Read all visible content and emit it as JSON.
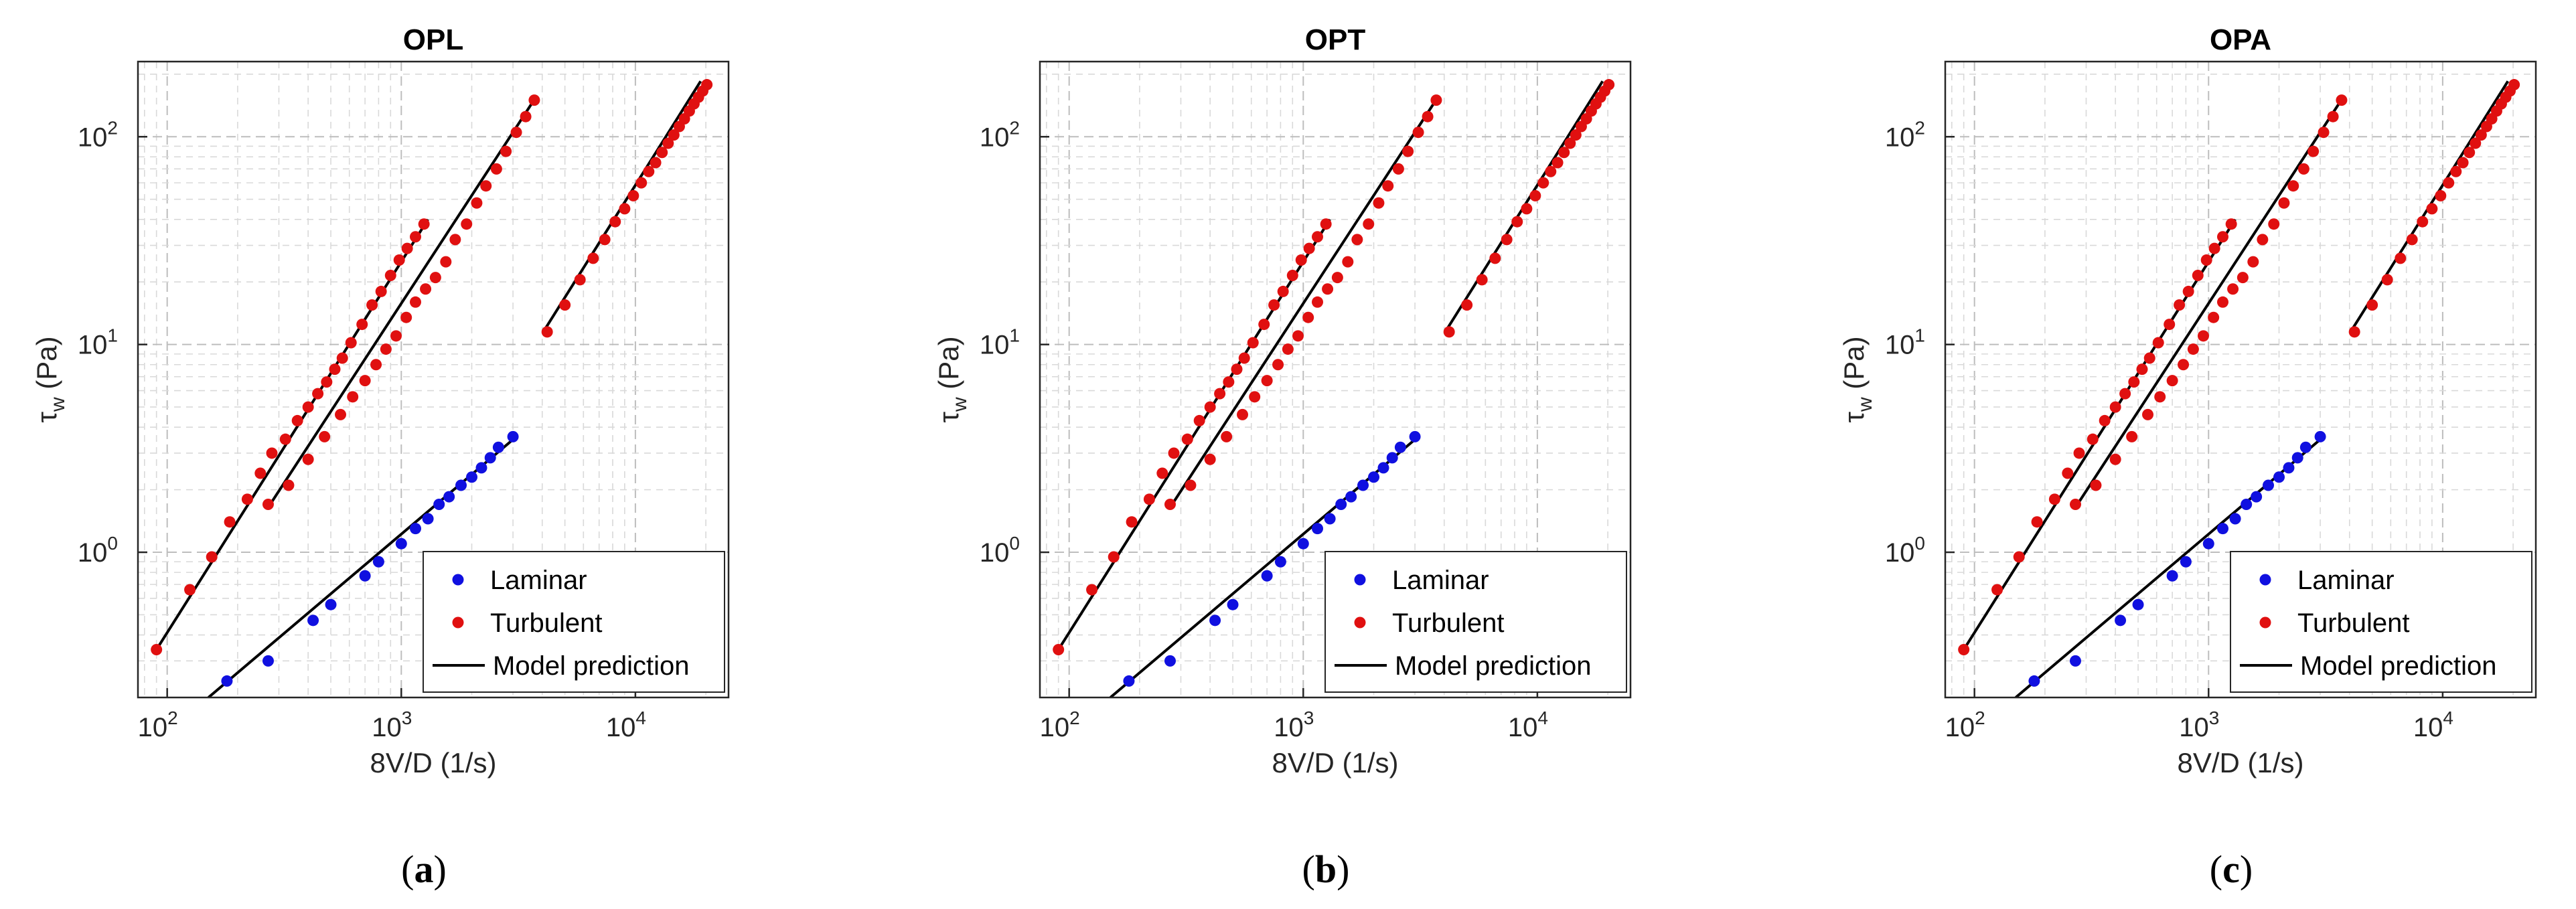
{
  "figure": {
    "panels": [
      {
        "title": "OPL",
        "caption_letter": "a"
      },
      {
        "title": "OPT",
        "caption_letter": "b"
      },
      {
        "title": "OPA",
        "caption_letter": "c"
      }
    ]
  },
  "chart_data": [
    {
      "type": "scatter",
      "title": "OPL",
      "xlabel": "8V/D (1/s)",
      "ylabel": "τ_w (Pa)",
      "xscale": "log",
      "yscale": "log",
      "xlim": [
        75,
        25000
      ],
      "ylim": [
        0.2,
        230
      ],
      "xticks": [
        "10^2",
        "10^3",
        "10^4"
      ],
      "yticks": [
        "10^0",
        "10^1",
        "10^2"
      ],
      "grid": true,
      "minor_grid": true,
      "legend": {
        "position": "bottom-right",
        "entries": [
          "Laminar",
          "Turbulent",
          "Model prediction"
        ]
      },
      "series": [
        {
          "name": "Laminar",
          "marker": "dot",
          "color": "#1010e0",
          "x": [
            180,
            270,
            420,
            500,
            700,
            800,
            1000,
            1150,
            1300,
            1450,
            1600,
            1800,
            2000,
            2200,
            2400,
            2600,
            3000
          ],
          "y": [
            0.24,
            0.3,
            0.47,
            0.56,
            0.77,
            0.9,
            1.1,
            1.3,
            1.45,
            1.7,
            1.85,
            2.1,
            2.3,
            2.55,
            2.85,
            3.2,
            3.6
          ]
        },
        {
          "name": "Turbulent (set 1)",
          "marker": "dot",
          "color": "#e01010",
          "x": [
            90,
            125,
            155,
            185,
            220,
            250,
            280,
            320,
            360,
            400,
            440,
            480,
            520,
            560,
            610,
            680,
            750,
            820,
            900,
            980,
            1060,
            1150,
            1250
          ],
          "y": [
            0.34,
            0.66,
            0.95,
            1.4,
            1.8,
            2.4,
            3.0,
            3.5,
            4.3,
            5.0,
            5.8,
            6.6,
            7.6,
            8.6,
            10.2,
            12.5,
            15.5,
            18.0,
            21.5,
            25.5,
            29.0,
            33.0,
            38.0
          ]
        },
        {
          "name": "Turbulent (set 2)",
          "marker": "dot",
          "color": "#e01010",
          "x": [
            270,
            330,
            400,
            470,
            550,
            620,
            700,
            780,
            860,
            950,
            1050,
            1150,
            1270,
            1400,
            1550,
            1700,
            1900,
            2100,
            2300,
            2550,
            2800,
            3100,
            3400,
            3700
          ],
          "y": [
            1.7,
            2.1,
            2.8,
            3.6,
            4.6,
            5.6,
            6.7,
            8.0,
            9.5,
            11.0,
            13.5,
            16.0,
            18.5,
            21.0,
            25.0,
            32.0,
            38.0,
            48.0,
            58.0,
            70.0,
            85.0,
            105.0,
            125.0,
            150.0
          ]
        },
        {
          "name": "Turbulent (set 3)",
          "marker": "dot",
          "color": "#e01010",
          "x": [
            4200,
            5000,
            5800,
            6600,
            7400,
            8200,
            9000,
            9800,
            10600,
            11400,
            12200,
            13000,
            13800,
            14600,
            15400,
            16200,
            17000,
            17800,
            18600,
            19400,
            20200
          ],
          "y": [
            11.5,
            15.5,
            20.5,
            26.0,
            32.0,
            39.0,
            45.0,
            52.0,
            60.0,
            68.0,
            75.0,
            84.0,
            93.0,
            102.0,
            112.0,
            122.0,
            133.0,
            144.0,
            155.0,
            166.0,
            178.0
          ]
        },
        {
          "name": "Model prediction (laminar)",
          "line": true,
          "color": "#000000",
          "x": [
            150,
            3100
          ],
          "y": [
            0.2,
            3.6
          ]
        },
        {
          "name": "Model prediction (turbulent 1)",
          "line": true,
          "color": "#000000",
          "x": [
            90,
            1300
          ],
          "y": [
            0.34,
            40
          ]
        },
        {
          "name": "Model prediction (turbulent 2)",
          "line": true,
          "color": "#000000",
          "x": [
            280,
            3800
          ],
          "y": [
            1.75,
            158
          ]
        },
        {
          "name": "Model prediction (turbulent 3)",
          "line": true,
          "color": "#000000",
          "x": [
            4100,
            19000
          ],
          "y": [
            11.8,
            185
          ]
        }
      ]
    },
    {
      "type": "scatter",
      "title": "OPT",
      "xlabel": "8V/D (1/s)",
      "ylabel": "τ_w (Pa)",
      "xscale": "log",
      "yscale": "log",
      "xlim": [
        75,
        25000
      ],
      "ylim": [
        0.2,
        230
      ],
      "xticks": [
        "10^2",
        "10^3",
        "10^4"
      ],
      "yticks": [
        "10^0",
        "10^1",
        "10^2"
      ],
      "grid": true,
      "minor_grid": true,
      "legend": {
        "position": "bottom-right",
        "entries": [
          "Laminar",
          "Turbulent",
          "Model prediction"
        ]
      },
      "series": [
        {
          "name": "Laminar",
          "marker": "dot",
          "color": "#1010e0",
          "x": [
            180,
            270,
            420,
            500,
            700,
            800,
            1000,
            1150,
            1300,
            1450,
            1600,
            1800,
            2000,
            2200,
            2400,
            2600,
            3000
          ],
          "y": [
            0.24,
            0.3,
            0.47,
            0.56,
            0.77,
            0.9,
            1.1,
            1.3,
            1.45,
            1.7,
            1.85,
            2.1,
            2.3,
            2.55,
            2.85,
            3.2,
            3.6
          ]
        },
        {
          "name": "Turbulent (set 1)",
          "marker": "dot",
          "color": "#e01010",
          "x": [
            90,
            125,
            155,
            185,
            220,
            250,
            280,
            320,
            360,
            400,
            440,
            480,
            520,
            560,
            610,
            680,
            750,
            820,
            900,
            980,
            1060,
            1150,
            1250
          ],
          "y": [
            0.34,
            0.66,
            0.95,
            1.4,
            1.8,
            2.4,
            3.0,
            3.5,
            4.3,
            5.0,
            5.8,
            6.6,
            7.6,
            8.6,
            10.2,
            12.5,
            15.5,
            18.0,
            21.5,
            25.5,
            29.0,
            33.0,
            38.0
          ]
        },
        {
          "name": "Turbulent (set 2)",
          "marker": "dot",
          "color": "#e01010",
          "x": [
            270,
            330,
            400,
            470,
            550,
            620,
            700,
            780,
            860,
            950,
            1050,
            1150,
            1270,
            1400,
            1550,
            1700,
            1900,
            2100,
            2300,
            2550,
            2800,
            3100,
            3400,
            3700
          ],
          "y": [
            1.7,
            2.1,
            2.8,
            3.6,
            4.6,
            5.6,
            6.7,
            8.0,
            9.5,
            11.0,
            13.5,
            16.0,
            18.5,
            21.0,
            25.0,
            32.0,
            38.0,
            48.0,
            58.0,
            70.0,
            85.0,
            105.0,
            125.0,
            150.0
          ]
        },
        {
          "name": "Turbulent (set 3)",
          "marker": "dot",
          "color": "#e01010",
          "x": [
            4200,
            5000,
            5800,
            6600,
            7400,
            8200,
            9000,
            9800,
            10600,
            11400,
            12200,
            13000,
            13800,
            14600,
            15400,
            16200,
            17000,
            17800,
            18600,
            19400,
            20200
          ],
          "y": [
            11.5,
            15.5,
            20.5,
            26.0,
            32.0,
            39.0,
            45.0,
            52.0,
            60.0,
            68.0,
            75.0,
            84.0,
            93.0,
            102.0,
            112.0,
            122.0,
            133.0,
            144.0,
            155.0,
            166.0,
            178.0
          ]
        },
        {
          "name": "Model prediction (laminar)",
          "line": true,
          "color": "#000000",
          "x": [
            150,
            3100
          ],
          "y": [
            0.2,
            3.6
          ]
        },
        {
          "name": "Model prediction (turbulent 1)",
          "line": true,
          "color": "#000000",
          "x": [
            90,
            1300
          ],
          "y": [
            0.34,
            40
          ]
        },
        {
          "name": "Model prediction (turbulent 2)",
          "line": true,
          "color": "#000000",
          "x": [
            280,
            3800
          ],
          "y": [
            1.75,
            158
          ]
        },
        {
          "name": "Model prediction (turbulent 3)",
          "line": true,
          "color": "#000000",
          "x": [
            4100,
            19000
          ],
          "y": [
            11.8,
            185
          ]
        }
      ]
    },
    {
      "type": "scatter",
      "title": "OPA",
      "xlabel": "8V/D (1/s)",
      "ylabel": "τ_w (Pa)",
      "xscale": "log",
      "yscale": "log",
      "xlim": [
        75,
        25000
      ],
      "ylim": [
        0.2,
        230
      ],
      "xticks": [
        "10^2",
        "10^3",
        "10^4"
      ],
      "yticks": [
        "10^0",
        "10^1",
        "10^2"
      ],
      "grid": true,
      "minor_grid": true,
      "legend": {
        "position": "bottom-right",
        "entries": [
          "Laminar",
          "Turbulent",
          "Model prediction"
        ]
      },
      "series": [
        {
          "name": "Laminar",
          "marker": "dot",
          "color": "#1010e0",
          "x": [
            180,
            270,
            420,
            500,
            700,
            800,
            1000,
            1150,
            1300,
            1450,
            1600,
            1800,
            2000,
            2200,
            2400,
            2600,
            3000
          ],
          "y": [
            0.24,
            0.3,
            0.47,
            0.56,
            0.77,
            0.9,
            1.1,
            1.3,
            1.45,
            1.7,
            1.85,
            2.1,
            2.3,
            2.55,
            2.85,
            3.2,
            3.6
          ]
        },
        {
          "name": "Turbulent (set 1)",
          "marker": "dot",
          "color": "#e01010",
          "x": [
            90,
            125,
            155,
            185,
            220,
            250,
            280,
            320,
            360,
            400,
            440,
            480,
            520,
            560,
            610,
            680,
            750,
            820,
            900,
            980,
            1060,
            1150,
            1250
          ],
          "y": [
            0.34,
            0.66,
            0.95,
            1.4,
            1.8,
            2.4,
            3.0,
            3.5,
            4.3,
            5.0,
            5.8,
            6.6,
            7.6,
            8.6,
            10.2,
            12.5,
            15.5,
            18.0,
            21.5,
            25.5,
            29.0,
            33.0,
            38.0
          ]
        },
        {
          "name": "Turbulent (set 2)",
          "marker": "dot",
          "color": "#e01010",
          "x": [
            270,
            330,
            400,
            470,
            550,
            620,
            700,
            780,
            860,
            950,
            1050,
            1150,
            1270,
            1400,
            1550,
            1700,
            1900,
            2100,
            2300,
            2550,
            2800,
            3100,
            3400,
            3700
          ],
          "y": [
            1.7,
            2.1,
            2.8,
            3.6,
            4.6,
            5.6,
            6.7,
            8.0,
            9.5,
            11.0,
            13.5,
            16.0,
            18.5,
            21.0,
            25.0,
            32.0,
            38.0,
            48.0,
            58.0,
            70.0,
            85.0,
            105.0,
            125.0,
            150.0
          ]
        },
        {
          "name": "Turbulent (set 3)",
          "marker": "dot",
          "color": "#e01010",
          "x": [
            4200,
            5000,
            5800,
            6600,
            7400,
            8200,
            9000,
            9800,
            10600,
            11400,
            12200,
            13000,
            13800,
            14600,
            15400,
            16200,
            17000,
            17800,
            18600,
            19400,
            20200
          ],
          "y": [
            11.5,
            15.5,
            20.5,
            26.0,
            32.0,
            39.0,
            45.0,
            52.0,
            60.0,
            68.0,
            75.0,
            84.0,
            93.0,
            102.0,
            112.0,
            122.0,
            133.0,
            144.0,
            155.0,
            166.0,
            178.0
          ]
        },
        {
          "name": "Model prediction (laminar)",
          "line": true,
          "color": "#000000",
          "x": [
            150,
            3100
          ],
          "y": [
            0.2,
            3.6
          ]
        },
        {
          "name": "Model prediction (turbulent 1)",
          "line": true,
          "color": "#000000",
          "x": [
            90,
            1300
          ],
          "y": [
            0.34,
            40
          ]
        },
        {
          "name": "Model prediction (turbulent 2)",
          "line": true,
          "color": "#000000",
          "x": [
            280,
            3800
          ],
          "y": [
            1.75,
            158
          ]
        },
        {
          "name": "Model prediction (turbulent 3)",
          "line": true,
          "color": "#000000",
          "x": [
            4100,
            19000
          ],
          "y": [
            11.8,
            185
          ]
        }
      ]
    }
  ]
}
